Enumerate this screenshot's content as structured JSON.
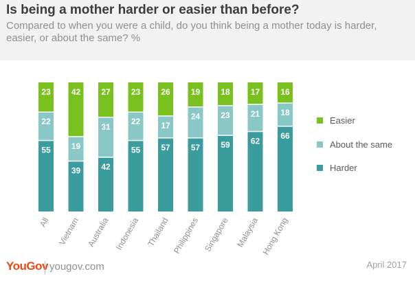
{
  "header": {
    "title": "Is being a mother harder or easier than before?",
    "subtitle": "Compared to when you were a child, do you think being a mother today is harder, easier, or about the same? %"
  },
  "footer": {
    "brand": "YouGov",
    "url": "yougov.com",
    "date": "April 2017"
  },
  "colors": {
    "harder": "#3a9c9c",
    "same": "#8ac7c7",
    "easier": "#7ac11f",
    "header_bg": "#f2f2f2",
    "brand": "#e64a19"
  },
  "chart_data": {
    "type": "bar",
    "stacked": true,
    "categories": [
      "All",
      "Vietnam",
      "Australia",
      "Indonesia",
      "Thailand",
      "Philippines",
      "Singapore",
      "Malaysia",
      "Hong Kong"
    ],
    "series": [
      {
        "name": "Harder",
        "values": [
          55,
          39,
          42,
          55,
          57,
          57,
          59,
          62,
          66
        ]
      },
      {
        "name": "About the same",
        "values": [
          22,
          19,
          31,
          22,
          17,
          24,
          23,
          21,
          18
        ]
      },
      {
        "name": "Easier",
        "values": [
          23,
          42,
          27,
          23,
          26,
          19,
          18,
          17,
          16
        ]
      }
    ],
    "legend": {
      "position": "right",
      "order": [
        "Easier",
        "About the same",
        "Harder"
      ]
    },
    "ylim": [
      0,
      100
    ],
    "grid": false
  }
}
